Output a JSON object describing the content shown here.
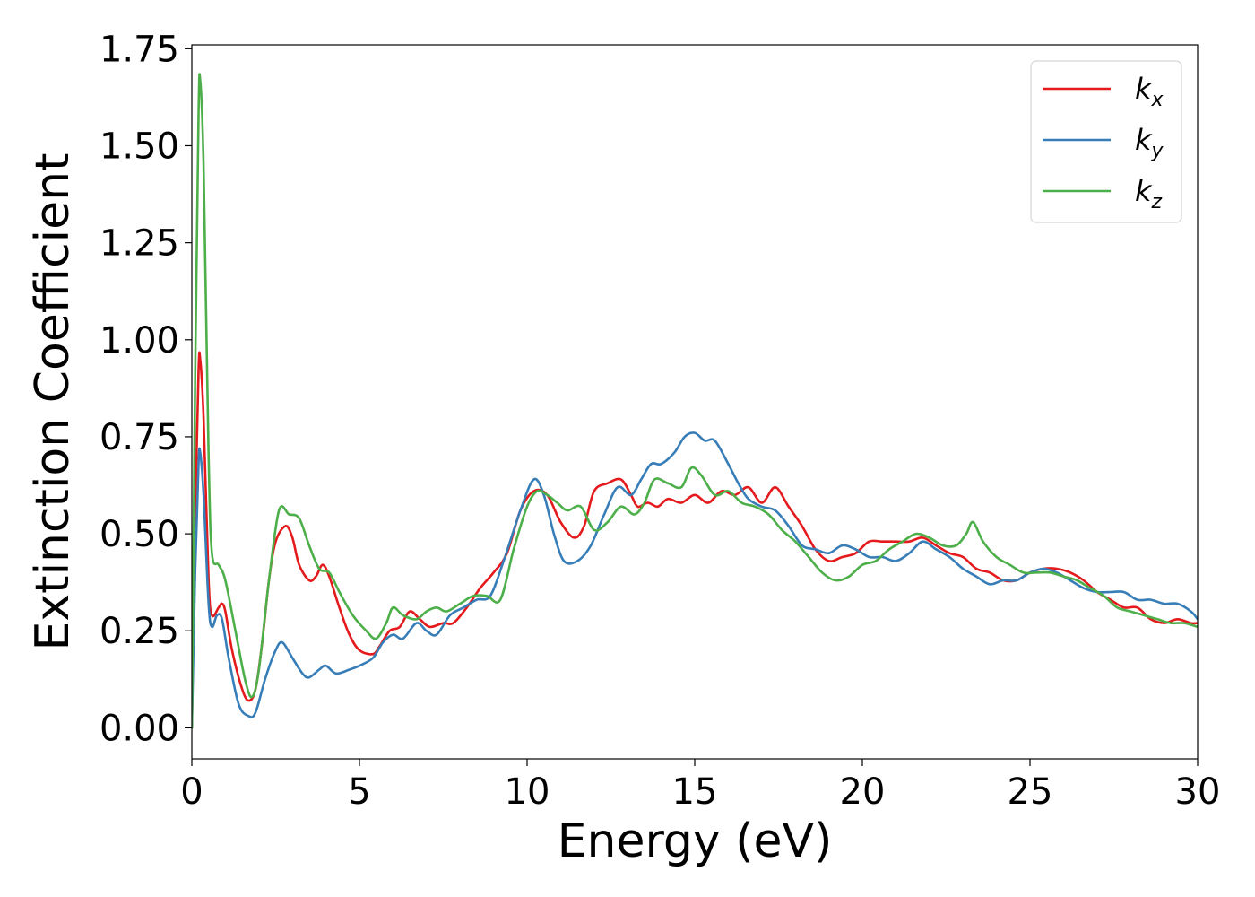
{
  "chart_data": {
    "type": "line",
    "title": "",
    "xlabel": "Energy (eV)",
    "ylabel": "Extinction Coefficient",
    "xlim": [
      0,
      30
    ],
    "ylim": [
      -0.08,
      1.76
    ],
    "x_ticks": [
      "0",
      "5",
      "10",
      "15",
      "20",
      "25",
      "30"
    ],
    "y_ticks": [
      "0.00",
      "0.25",
      "0.50",
      "0.75",
      "1.00",
      "1.25",
      "1.50",
      "1.75"
    ],
    "grid": false,
    "legend_position": "top-right",
    "series": [
      {
        "name": "k_x",
        "legend_base": "k",
        "legend_sub": "x",
        "color": "#e41a1c",
        "points": [
          [
            0,
            0.0
          ],
          [
            0.1,
            0.55
          ],
          [
            0.2,
            0.92
          ],
          [
            0.25,
            0.95
          ],
          [
            0.35,
            0.8
          ],
          [
            0.5,
            0.38
          ],
          [
            0.6,
            0.29
          ],
          [
            0.8,
            0.31
          ],
          [
            0.9,
            0.32
          ],
          [
            1.0,
            0.3
          ],
          [
            1.2,
            0.2
          ],
          [
            1.5,
            0.1
          ],
          [
            1.7,
            0.07
          ],
          [
            1.9,
            0.1
          ],
          [
            2.1,
            0.22
          ],
          [
            2.3,
            0.38
          ],
          [
            2.5,
            0.48
          ],
          [
            2.8,
            0.52
          ],
          [
            3.0,
            0.49
          ],
          [
            3.2,
            0.42
          ],
          [
            3.5,
            0.38
          ],
          [
            3.7,
            0.39
          ],
          [
            3.9,
            0.42
          ],
          [
            4.1,
            0.39
          ],
          [
            4.4,
            0.31
          ],
          [
            4.7,
            0.24
          ],
          [
            5.0,
            0.2
          ],
          [
            5.4,
            0.19
          ],
          [
            5.6,
            0.21
          ],
          [
            5.9,
            0.25
          ],
          [
            6.2,
            0.26
          ],
          [
            6.5,
            0.3
          ],
          [
            6.8,
            0.28
          ],
          [
            7.1,
            0.26
          ],
          [
            7.5,
            0.27
          ],
          [
            7.8,
            0.27
          ],
          [
            8.2,
            0.31
          ],
          [
            8.6,
            0.36
          ],
          [
            9.0,
            0.4
          ],
          [
            9.4,
            0.45
          ],
          [
            9.8,
            0.56
          ],
          [
            10.2,
            0.61
          ],
          [
            10.6,
            0.6
          ],
          [
            11.0,
            0.53
          ],
          [
            11.4,
            0.49
          ],
          [
            11.7,
            0.52
          ],
          [
            12.0,
            0.61
          ],
          [
            12.4,
            0.63
          ],
          [
            12.8,
            0.64
          ],
          [
            13.1,
            0.6
          ],
          [
            13.3,
            0.57
          ],
          [
            13.6,
            0.58
          ],
          [
            13.9,
            0.57
          ],
          [
            14.2,
            0.59
          ],
          [
            14.6,
            0.58
          ],
          [
            15.0,
            0.6
          ],
          [
            15.4,
            0.58
          ],
          [
            15.8,
            0.61
          ],
          [
            16.2,
            0.6
          ],
          [
            16.6,
            0.62
          ],
          [
            17.0,
            0.58
          ],
          [
            17.4,
            0.62
          ],
          [
            17.8,
            0.57
          ],
          [
            18.2,
            0.52
          ],
          [
            18.6,
            0.46
          ],
          [
            19.0,
            0.43
          ],
          [
            19.4,
            0.44
          ],
          [
            19.8,
            0.45
          ],
          [
            20.2,
            0.48
          ],
          [
            20.6,
            0.48
          ],
          [
            21.0,
            0.48
          ],
          [
            21.4,
            0.48
          ],
          [
            21.8,
            0.49
          ],
          [
            22.2,
            0.47
          ],
          [
            22.6,
            0.45
          ],
          [
            23.0,
            0.44
          ],
          [
            23.4,
            0.41
          ],
          [
            23.8,
            0.4
          ],
          [
            24.2,
            0.38
          ],
          [
            24.6,
            0.38
          ],
          [
            25.0,
            0.4
          ],
          [
            25.4,
            0.41
          ],
          [
            25.8,
            0.41
          ],
          [
            26.2,
            0.4
          ],
          [
            26.6,
            0.38
          ],
          [
            27.0,
            0.35
          ],
          [
            27.4,
            0.33
          ],
          [
            27.8,
            0.31
          ],
          [
            28.2,
            0.31
          ],
          [
            28.6,
            0.28
          ],
          [
            29.0,
            0.27
          ],
          [
            29.4,
            0.28
          ],
          [
            29.8,
            0.27
          ],
          [
            30.0,
            0.27
          ]
        ]
      },
      {
        "name": "k_y",
        "legend_base": "k",
        "legend_sub": "y",
        "color": "#377eb8",
        "points": [
          [
            0,
            0.0
          ],
          [
            0.1,
            0.4
          ],
          [
            0.2,
            0.68
          ],
          [
            0.25,
            0.71
          ],
          [
            0.35,
            0.6
          ],
          [
            0.5,
            0.32
          ],
          [
            0.6,
            0.26
          ],
          [
            0.75,
            0.29
          ],
          [
            0.9,
            0.28
          ],
          [
            1.1,
            0.18
          ],
          [
            1.4,
            0.06
          ],
          [
            1.7,
            0.03
          ],
          [
            1.9,
            0.04
          ],
          [
            2.2,
            0.13
          ],
          [
            2.5,
            0.2
          ],
          [
            2.7,
            0.22
          ],
          [
            3.0,
            0.18
          ],
          [
            3.3,
            0.14
          ],
          [
            3.5,
            0.13
          ],
          [
            3.8,
            0.15
          ],
          [
            4.0,
            0.16
          ],
          [
            4.3,
            0.14
          ],
          [
            4.7,
            0.15
          ],
          [
            5.0,
            0.16
          ],
          [
            5.4,
            0.18
          ],
          [
            5.7,
            0.22
          ],
          [
            6.0,
            0.24
          ],
          [
            6.3,
            0.23
          ],
          [
            6.7,
            0.27
          ],
          [
            7.0,
            0.25
          ],
          [
            7.3,
            0.24
          ],
          [
            7.7,
            0.29
          ],
          [
            8.1,
            0.31
          ],
          [
            8.5,
            0.33
          ],
          [
            8.9,
            0.34
          ],
          [
            9.3,
            0.43
          ],
          [
            9.8,
            0.56
          ],
          [
            10.2,
            0.64
          ],
          [
            10.5,
            0.6
          ],
          [
            10.8,
            0.5
          ],
          [
            11.1,
            0.43
          ],
          [
            11.5,
            0.43
          ],
          [
            11.9,
            0.47
          ],
          [
            12.3,
            0.55
          ],
          [
            12.7,
            0.62
          ],
          [
            13.1,
            0.6
          ],
          [
            13.4,
            0.64
          ],
          [
            13.7,
            0.68
          ],
          [
            14.0,
            0.68
          ],
          [
            14.4,
            0.71
          ],
          [
            14.7,
            0.75
          ],
          [
            15.0,
            0.76
          ],
          [
            15.3,
            0.74
          ],
          [
            15.6,
            0.74
          ],
          [
            16.0,
            0.68
          ],
          [
            16.3,
            0.63
          ],
          [
            16.6,
            0.59
          ],
          [
            17.0,
            0.57
          ],
          [
            17.4,
            0.56
          ],
          [
            17.8,
            0.52
          ],
          [
            18.2,
            0.47
          ],
          [
            18.6,
            0.46
          ],
          [
            19.0,
            0.45
          ],
          [
            19.4,
            0.47
          ],
          [
            19.8,
            0.46
          ],
          [
            20.2,
            0.44
          ],
          [
            20.6,
            0.44
          ],
          [
            21.0,
            0.43
          ],
          [
            21.4,
            0.45
          ],
          [
            21.8,
            0.48
          ],
          [
            22.2,
            0.46
          ],
          [
            22.6,
            0.44
          ],
          [
            23.0,
            0.41
          ],
          [
            23.4,
            0.39
          ],
          [
            23.8,
            0.37
          ],
          [
            24.2,
            0.38
          ],
          [
            24.6,
            0.38
          ],
          [
            25.0,
            0.4
          ],
          [
            25.4,
            0.41
          ],
          [
            25.8,
            0.4
          ],
          [
            26.2,
            0.38
          ],
          [
            26.6,
            0.36
          ],
          [
            27.0,
            0.35
          ],
          [
            27.4,
            0.35
          ],
          [
            27.8,
            0.35
          ],
          [
            28.2,
            0.33
          ],
          [
            28.6,
            0.33
          ],
          [
            29.0,
            0.32
          ],
          [
            29.4,
            0.32
          ],
          [
            29.8,
            0.3
          ],
          [
            30.0,
            0.28
          ]
        ]
      },
      {
        "name": "k_z",
        "legend_base": "k",
        "legend_sub": "z",
        "color": "#4daf4a",
        "points": [
          [
            0,
            0.0
          ],
          [
            0.1,
            0.9
          ],
          [
            0.2,
            1.58
          ],
          [
            0.25,
            1.67
          ],
          [
            0.35,
            1.45
          ],
          [
            0.5,
            0.7
          ],
          [
            0.6,
            0.45
          ],
          [
            0.8,
            0.42
          ],
          [
            1.0,
            0.38
          ],
          [
            1.3,
            0.25
          ],
          [
            1.6,
            0.12
          ],
          [
            1.8,
            0.08
          ],
          [
            2.0,
            0.15
          ],
          [
            2.3,
            0.38
          ],
          [
            2.6,
            0.56
          ],
          [
            2.9,
            0.55
          ],
          [
            3.2,
            0.54
          ],
          [
            3.5,
            0.47
          ],
          [
            3.8,
            0.41
          ],
          [
            4.1,
            0.4
          ],
          [
            4.4,
            0.35
          ],
          [
            4.8,
            0.29
          ],
          [
            5.2,
            0.25
          ],
          [
            5.5,
            0.23
          ],
          [
            5.8,
            0.27
          ],
          [
            6.0,
            0.31
          ],
          [
            6.3,
            0.29
          ],
          [
            6.7,
            0.28
          ],
          [
            7.0,
            0.3
          ],
          [
            7.3,
            0.31
          ],
          [
            7.6,
            0.3
          ],
          [
            8.0,
            0.32
          ],
          [
            8.4,
            0.34
          ],
          [
            8.8,
            0.34
          ],
          [
            9.2,
            0.33
          ],
          [
            9.6,
            0.46
          ],
          [
            10.0,
            0.57
          ],
          [
            10.3,
            0.61
          ],
          [
            10.6,
            0.6
          ],
          [
            10.9,
            0.58
          ],
          [
            11.2,
            0.56
          ],
          [
            11.6,
            0.57
          ],
          [
            12.0,
            0.51
          ],
          [
            12.4,
            0.53
          ],
          [
            12.8,
            0.57
          ],
          [
            13.2,
            0.55
          ],
          [
            13.5,
            0.58
          ],
          [
            13.8,
            0.64
          ],
          [
            14.2,
            0.63
          ],
          [
            14.6,
            0.62
          ],
          [
            14.9,
            0.67
          ],
          [
            15.2,
            0.65
          ],
          [
            15.6,
            0.6
          ],
          [
            16.0,
            0.61
          ],
          [
            16.4,
            0.58
          ],
          [
            16.8,
            0.57
          ],
          [
            17.2,
            0.55
          ],
          [
            17.6,
            0.51
          ],
          [
            18.0,
            0.48
          ],
          [
            18.4,
            0.44
          ],
          [
            18.8,
            0.4
          ],
          [
            19.2,
            0.38
          ],
          [
            19.6,
            0.39
          ],
          [
            20.0,
            0.42
          ],
          [
            20.4,
            0.43
          ],
          [
            20.8,
            0.46
          ],
          [
            21.2,
            0.48
          ],
          [
            21.6,
            0.5
          ],
          [
            22.0,
            0.49
          ],
          [
            22.4,
            0.47
          ],
          [
            22.8,
            0.47
          ],
          [
            23.1,
            0.5
          ],
          [
            23.3,
            0.53
          ],
          [
            23.6,
            0.48
          ],
          [
            24.0,
            0.44
          ],
          [
            24.4,
            0.42
          ],
          [
            24.8,
            0.4
          ],
          [
            25.2,
            0.4
          ],
          [
            25.6,
            0.4
          ],
          [
            26.0,
            0.39
          ],
          [
            26.4,
            0.38
          ],
          [
            26.8,
            0.36
          ],
          [
            27.2,
            0.34
          ],
          [
            27.6,
            0.31
          ],
          [
            28.0,
            0.3
          ],
          [
            28.4,
            0.29
          ],
          [
            28.8,
            0.28
          ],
          [
            29.2,
            0.27
          ],
          [
            29.6,
            0.27
          ],
          [
            30.0,
            0.26
          ]
        ]
      }
    ]
  }
}
